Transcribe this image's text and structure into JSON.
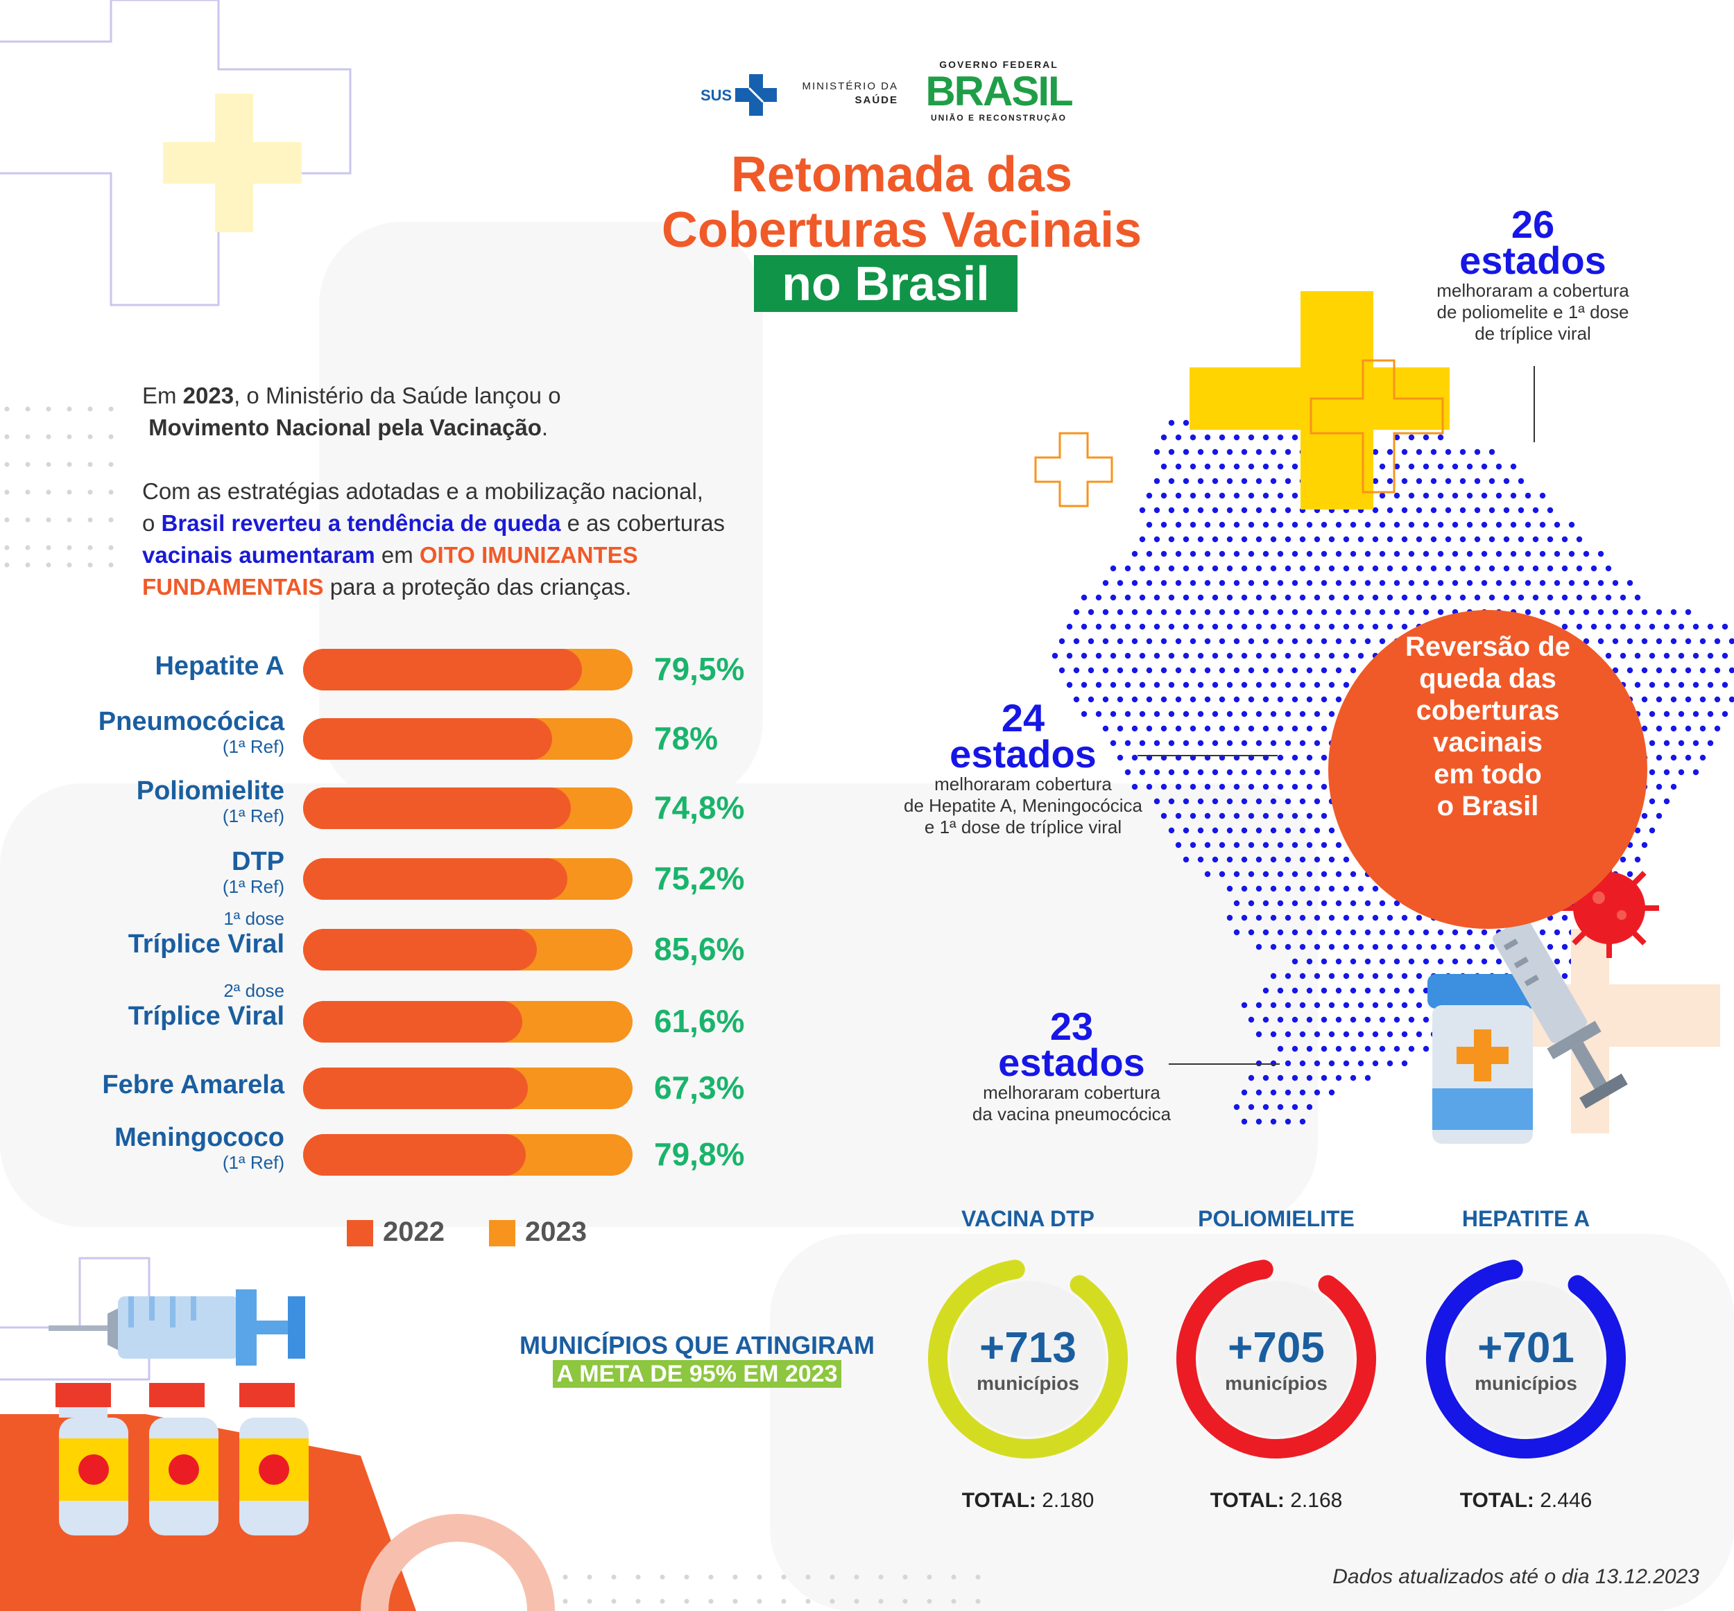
{
  "header": {
    "sus_label": "SUS",
    "ministry_line1": "MINISTÉRIO DA",
    "ministry_line2": "SAÚDE",
    "gov_top": "GOVERNO FEDERAL",
    "gov_brand": "BRASIL",
    "gov_bottom": "UNIÃO E RECONSTRUÇÃO"
  },
  "title": {
    "line1": "Retomada das",
    "line2": "Coberturas Vacinais",
    "line3": "no Brasil"
  },
  "intro": {
    "p1_a": "Em ",
    "p1_year": "2023",
    "p1_b": ", o Ministério da Saúde lançou o",
    "p1_movement": "Movimento Nacional pela Vacinação",
    "p1_end": ".",
    "p2_a": "Com as estratégias adotadas e a mobilização nacional,",
    "p2_b": "o ",
    "p2_blue1": "Brasil reverteu a tendência de queda",
    "p2_c": " e as coberturas",
    "p2_blue2": "vacinais aumentaram",
    "p2_d": " em ",
    "p2_orange1": "OITO IMUNIZANTES",
    "p2_orange2": "FUNDAMENTAIS",
    "p2_e": " para a proteção das crianças."
  },
  "chart_data": {
    "type": "bar",
    "categories": [
      {
        "label": "Hepatite A",
        "pre": "",
        "sub": ""
      },
      {
        "label": "Pneumocócica",
        "pre": "",
        "sub": "(1ª Ref)"
      },
      {
        "label": "Poliomielite",
        "pre": "",
        "sub": "(1ª Ref)"
      },
      {
        "label": "DTP",
        "pre": "",
        "sub": "(1ª Ref)"
      },
      {
        "label": "Tríplice Viral",
        "pre": "1ª dose",
        "sub": ""
      },
      {
        "label": "Tríplice Viral",
        "pre": "2ª dose",
        "sub": ""
      },
      {
        "label": "Febre Amarela",
        "pre": "",
        "sub": ""
      },
      {
        "label": "Meningococo",
        "pre": "",
        "sub": "(1ª Ref)"
      }
    ],
    "series": [
      {
        "name": "2022",
        "color": "#F05A28",
        "values": [
          74.5,
          66.5,
          71.5,
          70.5,
          62.5,
          58.5,
          60.0,
          59.5
        ]
      },
      {
        "name": "2023",
        "color": "#F7941D",
        "values": [
          79.5,
          78,
          74.8,
          75.2,
          85.6,
          61.6,
          67.3,
          79.8
        ]
      }
    ],
    "labels_2023": [
      "79,5%",
      "78%",
      "74,8%",
      "75,2%",
      "85,6%",
      "61,6%",
      "67,3%",
      "79,8%"
    ]
  },
  "legend": {
    "y2022": "2022",
    "y2023": "2023"
  },
  "map": {
    "stat1": {
      "num": "26",
      "word": "estados",
      "desc1": "melhoraram a cobertura",
      "desc2": "de poliomelite e 1ª dose",
      "desc3": "de tríplice viral"
    },
    "stat2": {
      "num": "24",
      "word": "estados",
      "desc1": "melhoraram cobertura",
      "desc2": "de Hepatite A, Meningocócica",
      "desc3": "e 1ª dose de tríplice viral"
    },
    "stat3": {
      "num": "23",
      "word": "estados",
      "desc1": "melhoraram cobertura",
      "desc2": "da vacina pneumocócica"
    },
    "circle_l1": "Reversão de",
    "circle_l2": "queda das",
    "circle_l3": "coberturas",
    "circle_l4": "vacinais",
    "circle_l5": "em todo",
    "circle_l6": "o Brasil"
  },
  "municipios": {
    "title1": "MUNICÍPIOS QUE ATINGIRAM",
    "title2": "A META DE 95% EM 2023",
    "donuts": [
      {
        "title": "VACINA DTP",
        "value": "+713",
        "unit": "municípios",
        "total_label": "TOTAL:",
        "total": "2.180",
        "count": 713,
        "total_n": 2180,
        "color": "#D4DC22"
      },
      {
        "title": "POLIOMIELITE",
        "value": "+705",
        "unit": "municípios",
        "total_label": "TOTAL:",
        "total": "2.168",
        "count": 705,
        "total_n": 2168,
        "color": "#EC1C24"
      },
      {
        "title": "HEPATITE A",
        "value": "+701",
        "unit": "municípios",
        "total_label": "TOTAL:",
        "total": "2.446",
        "count": 701,
        "total_n": 2446,
        "color": "#1616E6"
      }
    ]
  },
  "footer": {
    "date": "Dados atualizados até o dia 13.12.2023"
  }
}
